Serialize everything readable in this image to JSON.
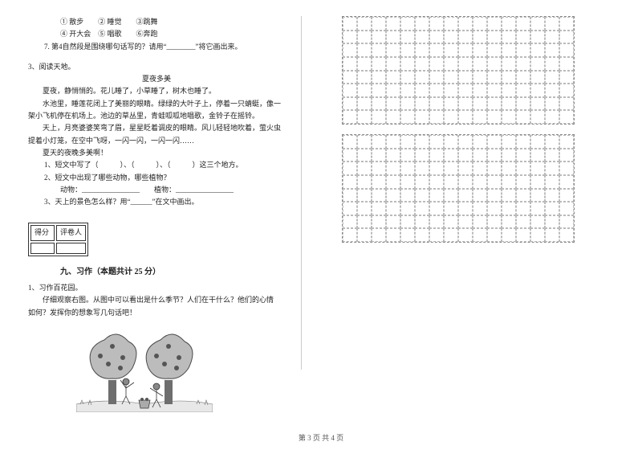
{
  "left": {
    "opts_line1": "① 散步　　② 睡觉　　③跳舞",
    "opts_line2": "④ 开大会　⑤ 唱歌　　⑥奔跑",
    "q7": "7. 第4自然段是围绕哪句话写的？请用“________”将它画出来。",
    "q3_title": "3、阅读天地。",
    "passage_title": "夏夜多美",
    "p1": "夏夜，静悄悄的。花儿睡了，小草睡了，树木也睡了。",
    "p2": "水池里，睡莲花闭上了美丽的眼睛。绿绿的大叶子上，停着一只蜻蜓，像一架小飞机停在机场上。池边的草丛里，青蛙呱呱地唱歌，金铃子在摇铃。",
    "p3": "天上，月亮婆婆笑弯了眉，星星眨着调皮的眼睛。风儿轻轻地吹着，萤火虫提着小灯笼，在空中飞呀，一闪一闪，一闪一闪……",
    "p4": "夏天的夜晚多美啊！",
    "pq1": "1、短文中写了（　　　）、（　　　）、（　　　）这三个地方。",
    "pq2": "2、短文中出现了哪些动物，哪些植物？",
    "pq2a": "动物：________________　　植物：________________",
    "pq3": "3、天上的景色怎么样？用“______”在文中画出。",
    "score_h1": "得分",
    "score_h2": "评卷人",
    "section9": "九、习作（本题共计 25 分）",
    "w1": "1、习作百花园。",
    "w2": "仔细观察右图。从图中可以看出是什么季节？人们在干什么？他们的心情　如何？发挥你的想象写几句话吧！"
  },
  "footer": "第 3 页  共 4 页",
  "tree": {
    "canopy_fill": "#bcbcbc",
    "canopy_stroke": "#4a4a4a",
    "trunk_fill": "#6e6e6e",
    "fruit_fill": "#555555",
    "grass_stroke": "#6e6e6e",
    "person_fill": "#888888",
    "person_stroke": "#333333"
  },
  "grid": {
    "cols": 16,
    "rows": 8
  }
}
